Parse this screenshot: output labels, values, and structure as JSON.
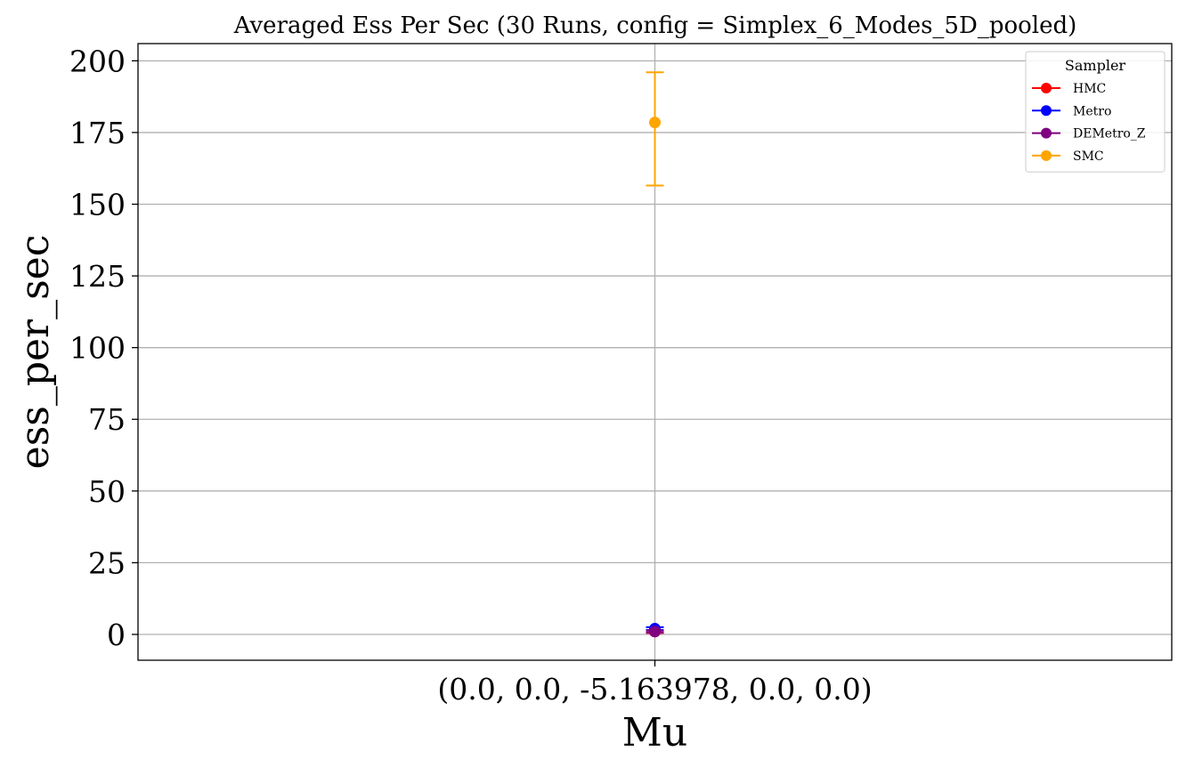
{
  "chart_data": {
    "type": "scatter",
    "title": "Averaged Ess Per Sec (30 Runs, config = Simplex_6_Modes_5D_pooled)",
    "xlabel": "Mu",
    "ylabel": "ess_per_sec",
    "categories": [
      "(0.0, 0.0, -5.163978, 0.0, 0.0)"
    ],
    "ylim": [
      -9,
      206
    ],
    "yticks": [
      0,
      25,
      50,
      75,
      100,
      125,
      150,
      175,
      200
    ],
    "grid": true,
    "legend": {
      "title": "Sampler",
      "placement": "top-right"
    },
    "series": [
      {
        "name": "HMC",
        "color": "#ff0000",
        "values": [
          1.0
        ],
        "err_low": [
          0.5
        ],
        "err_high": [
          1.5
        ]
      },
      {
        "name": "Metro",
        "color": "#0000ff",
        "values": [
          2.0
        ],
        "err_low": [
          1.5
        ],
        "err_high": [
          2.5
        ]
      },
      {
        "name": "DEMetro_Z",
        "color": "#800080",
        "values": [
          1.0
        ],
        "err_low": [
          0.7
        ],
        "err_high": [
          1.3
        ]
      },
      {
        "name": "SMC",
        "color": "#ffa500",
        "values": [
          178.5
        ],
        "err_low": [
          156.5
        ],
        "err_high": [
          196.0
        ]
      }
    ]
  }
}
